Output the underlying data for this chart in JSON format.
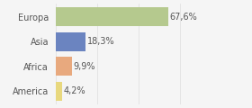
{
  "categories": [
    "Europa",
    "Asia",
    "Africa",
    "America"
  ],
  "values": [
    67.6,
    18.3,
    9.9,
    4.2
  ],
  "labels": [
    "67,6%",
    "18,3%",
    "9,9%",
    "4,2%"
  ],
  "bar_colors": [
    "#b5c98e",
    "#6b84c0",
    "#e8a97e",
    "#e8d87e"
  ],
  "background_color": "#f5f5f5",
  "xlim": [
    0,
    100
  ],
  "label_fontsize": 7,
  "tick_fontsize": 7,
  "bar_height": 0.75,
  "grid_color": "#dddddd",
  "grid_linewidth": 0.5,
  "label_color": "#555555",
  "tick_color": "#555555",
  "spine_color": "#cccccc"
}
